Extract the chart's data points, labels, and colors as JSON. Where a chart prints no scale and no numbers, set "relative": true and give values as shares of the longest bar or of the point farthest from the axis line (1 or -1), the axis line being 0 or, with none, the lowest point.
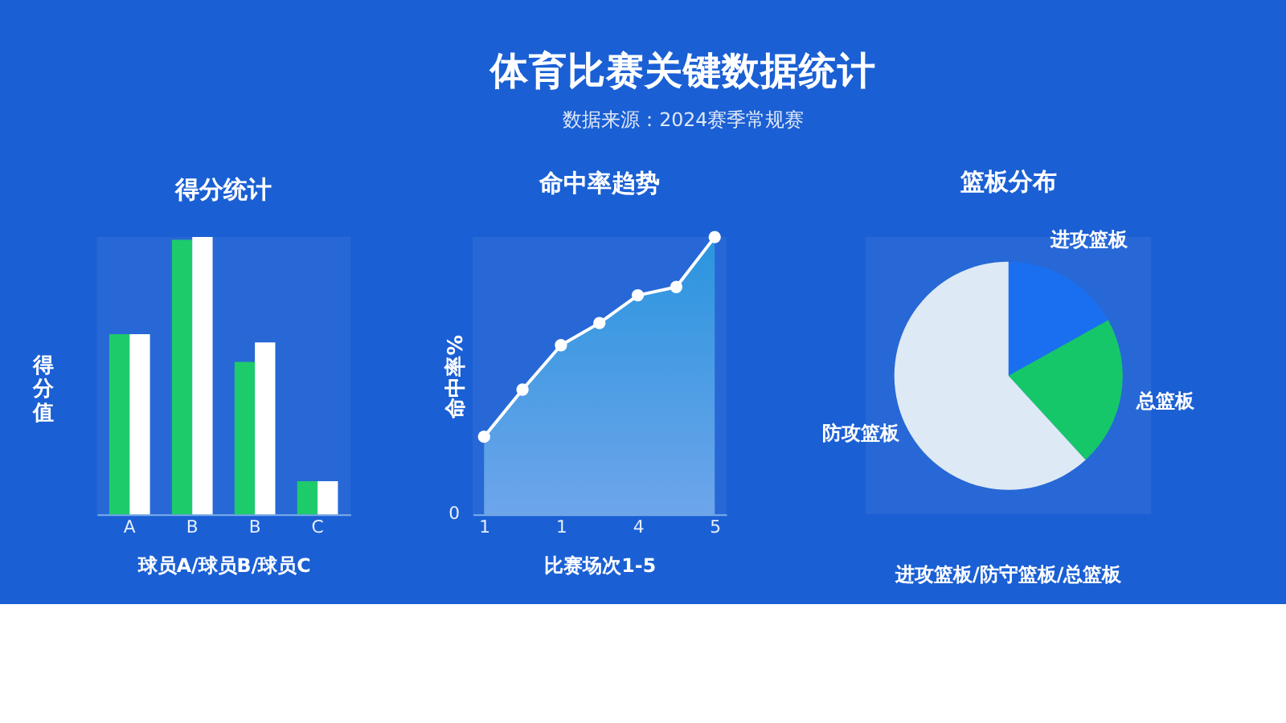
{
  "chart_data": [
    {
      "type": "other",
      "title": "体育比赛关键数据统计",
      "subtitle": "数据来源：2024赛季常规赛"
    },
    {
      "type": "bar",
      "title": "得分统计",
      "categories": [
        "A",
        "B",
        "B",
        "C"
      ],
      "xlabel": "球员A/球员B/球员C",
      "ylabel": "得分值",
      "relative": true,
      "series": [
        {
          "color": "#1ecb6a",
          "values": [
            0.65,
            0.99,
            0.55,
            0.12
          ]
        },
        {
          "color": "#ffffff",
          "values": [
            0.65,
            1,
            0.62,
            0.12
          ]
        }
      ]
    },
    {
      "type": "area",
      "title": "命中率趋势",
      "categories": [
        "1",
        null,
        "1",
        null,
        "4",
        null,
        "5"
      ],
      "xlabel": "比赛场次1-5",
      "ylabel": "命中率%",
      "relative": true,
      "marker": "circle",
      "series": [
        {
          "color": "#ffffff",
          "values": [
            0.28,
            0.45,
            0.61,
            0.69,
            0.79,
            0.82,
            1
          ]
        }
      ],
      "annotations": [
        "0"
      ]
    },
    {
      "type": "pie",
      "title": "篮板分布",
      "categories": [
        "进攻篮板",
        "总篮板",
        "防攻篮板"
      ],
      "values": [
        16.9,
        21.3,
        61.8
      ],
      "colors": [
        "#1a6ff0",
        "#16c76a",
        "#dde9f5"
      ],
      "annotations": [
        "进攻篮板/防守篮板/总篮板"
      ]
    }
  ]
}
